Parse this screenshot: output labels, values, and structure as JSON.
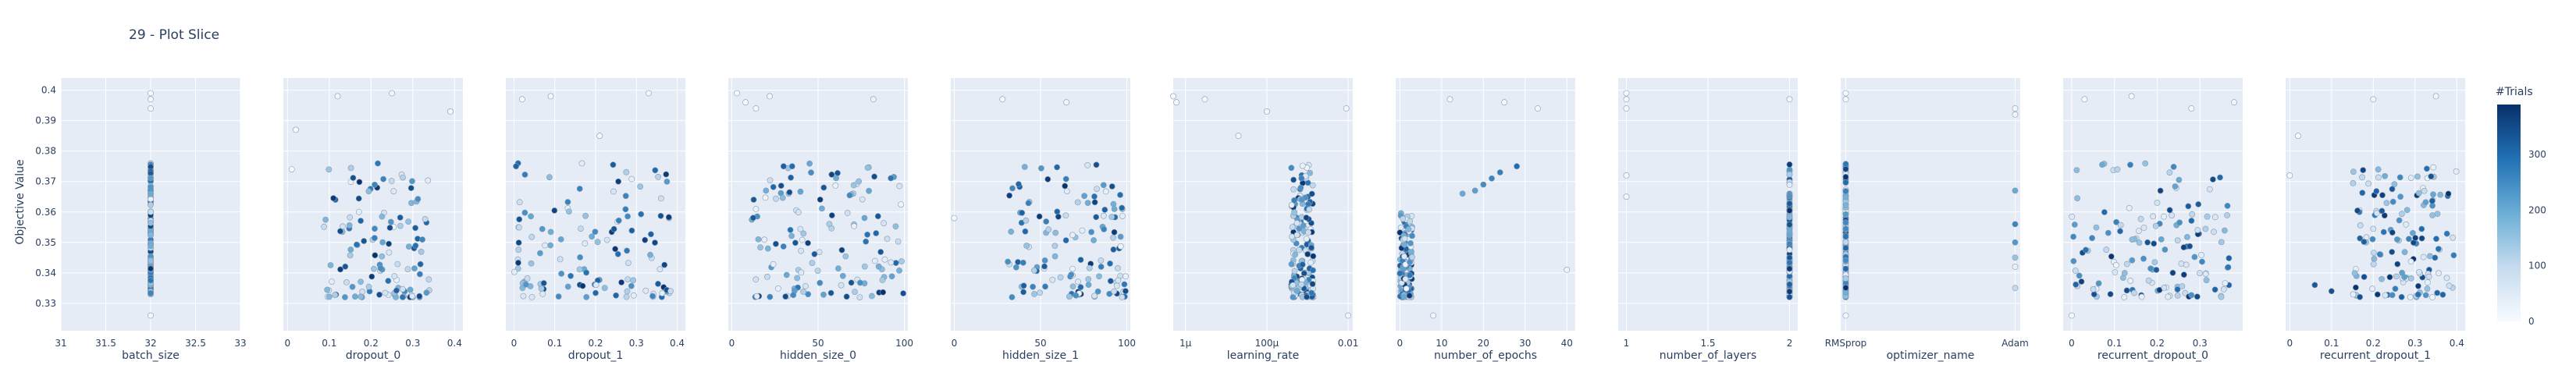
{
  "chart_data": {
    "type": "scatter",
    "title": "29 - Plot Slice",
    "ylabel": "Objective Value",
    "ylim": [
      0.321,
      0.404
    ],
    "yticks": [
      0.33,
      0.34,
      0.35,
      0.36,
      0.37,
      0.38,
      0.39,
      0.4
    ],
    "grid": true,
    "colorbar": {
      "title": "#Trials",
      "range": [
        0,
        390
      ],
      "ticks": [
        0,
        100,
        200,
        300
      ],
      "colorscale": [
        "#f7fbff",
        "#c6dbef",
        "#6baed6",
        "#2171b5",
        "#08306b"
      ]
    },
    "panels": [
      {
        "xlabel": "batch_size",
        "scale": "linear",
        "xlim": [
          31,
          33
        ],
        "xticks": [
          31,
          31.5,
          32,
          32.5,
          33
        ],
        "ticklabels": [
          "31",
          "31.5",
          "32",
          "32.5",
          "33"
        ],
        "seed": 1,
        "points": [
          [
            32,
            0.399,
            3
          ],
          [
            32,
            0.397,
            6
          ],
          [
            32,
            0.394,
            9
          ],
          [
            32,
            0.326,
            12
          ]
        ],
        "band": {
          "x": [
            32,
            32
          ],
          "y": [
            0.333,
            0.376
          ],
          "n": 140
        }
      },
      {
        "xlabel": "dropout_0",
        "scale": "linear",
        "xlim": [
          -0.01,
          0.42
        ],
        "xticks": [
          0,
          0.1,
          0.2,
          0.3,
          0.4
        ],
        "ticklabels": [
          "0",
          "0.1",
          "0.2",
          "0.3",
          "0.4"
        ],
        "seed": 2,
        "points": [
          [
            0.02,
            0.387,
            4
          ],
          [
            0.12,
            0.398,
            8
          ],
          [
            0.25,
            0.399,
            15
          ],
          [
            0.39,
            0.393,
            12
          ],
          [
            0.01,
            0.374,
            6
          ]
        ],
        "band": {
          "x": [
            0.08,
            0.34
          ],
          "y": [
            0.332,
            0.376
          ],
          "n": 120
        }
      },
      {
        "xlabel": "dropout_1",
        "scale": "linear",
        "xlim": [
          -0.02,
          0.42
        ],
        "xticks": [
          0,
          0.1,
          0.2,
          0.3,
          0.4
        ],
        "ticklabels": [
          "0",
          "0.1",
          "0.2",
          "0.3",
          "0.4"
        ],
        "seed": 3,
        "points": [
          [
            0.02,
            0.397,
            3
          ],
          [
            0.09,
            0.398,
            7
          ],
          [
            0.21,
            0.385,
            10
          ],
          [
            0.33,
            0.399,
            14
          ],
          [
            0.01,
            0.376,
            300
          ],
          [
            0.005,
            0.375,
            310
          ]
        ],
        "band": {
          "x": [
            0.0,
            0.4
          ],
          "y": [
            0.332,
            0.376
          ],
          "n": 120
        }
      },
      {
        "xlabel": "hidden_size_0",
        "scale": "linear",
        "xlim": [
          -2,
          102
        ],
        "xticks": [
          0,
          50,
          100
        ],
        "ticklabels": [
          "0",
          "50",
          "100"
        ],
        "seed": 4,
        "points": [
          [
            3,
            0.399,
            4
          ],
          [
            8,
            0.396,
            7
          ],
          [
            14,
            0.394,
            10
          ],
          [
            22,
            0.398,
            13
          ],
          [
            82,
            0.397,
            25
          ],
          [
            30,
            0.375,
            320
          ],
          [
            35,
            0.375,
            300
          ],
          [
            14,
            0.361,
            30
          ]
        ],
        "band": {
          "x": [
            10,
            100
          ],
          "y": [
            0.332,
            0.376
          ],
          "n": 130
        }
      },
      {
        "xlabel": "hidden_size_1",
        "scale": "linear",
        "xlim": [
          -2,
          102
        ],
        "xticks": [
          0,
          50,
          100
        ],
        "ticklabels": [
          "0",
          "50",
          "100"
        ],
        "seed": 5,
        "points": [
          [
            28,
            0.397,
            6
          ],
          [
            65,
            0.396,
            12
          ],
          [
            0,
            0.358,
            3
          ]
        ],
        "band": {
          "x": [
            30,
            100
          ],
          "y": [
            0.332,
            0.376
          ],
          "n": 130
        }
      },
      {
        "xlabel": "learning_rate",
        "scale": "log",
        "xlim": [
          5e-07,
          0.013
        ],
        "xticks": [
          1e-06,
          0.0001,
          0.01
        ],
        "ticklabels": [
          "1μ",
          "100μ",
          "0.01"
        ],
        "seed": 6,
        "points": [
          [
            5e-07,
            0.398,
            2
          ],
          [
            6e-07,
            0.396,
            4
          ],
          [
            3e-06,
            0.397,
            6
          ],
          [
            2e-05,
            0.385,
            8
          ],
          [
            0.0001,
            0.393,
            10
          ],
          [
            0.009,
            0.394,
            12
          ],
          [
            0.01,
            0.326,
            14
          ]
        ],
        "band": {
          "x": [
            0.0004,
            0.0014
          ],
          "y": [
            0.332,
            0.376
          ],
          "n": 150
        }
      },
      {
        "xlabel": "number_of_epochs",
        "scale": "linear",
        "xlim": [
          -1,
          42
        ],
        "xticks": [
          0,
          10,
          20,
          30,
          40
        ],
        "ticklabels": [
          "0",
          "10",
          "20",
          "30",
          "40"
        ],
        "seed": 7,
        "points": [
          [
            12,
            0.397,
            6
          ],
          [
            25,
            0.396,
            9
          ],
          [
            33,
            0.394,
            12
          ],
          [
            40,
            0.341,
            15
          ],
          [
            8,
            0.326,
            18
          ],
          [
            15,
            0.366,
            200
          ],
          [
            20,
            0.369,
            250
          ],
          [
            24,
            0.373,
            270
          ],
          [
            28,
            0.375,
            300
          ],
          [
            18,
            0.367,
            220
          ],
          [
            22,
            0.371,
            260
          ]
        ],
        "band": {
          "x": [
            0,
            3
          ],
          "y": [
            0.332,
            0.36
          ],
          "n": 150
        }
      },
      {
        "xlabel": "number_of_layers",
        "scale": "linear",
        "xlim": [
          0.95,
          2.05
        ],
        "xticks": [
          1,
          1.5,
          2
        ],
        "ticklabels": [
          "1",
          "1.5",
          "2"
        ],
        "seed": 8,
        "points": [
          [
            1,
            0.399,
            2
          ],
          [
            1,
            0.397,
            4
          ],
          [
            1,
            0.394,
            6
          ],
          [
            1,
            0.372,
            8
          ],
          [
            1,
            0.365,
            10
          ],
          [
            2,
            0.397,
            12
          ]
        ],
        "band": {
          "x": [
            2,
            2
          ],
          "y": [
            0.332,
            0.376
          ],
          "n": 150
        }
      },
      {
        "xlabel": "optimizer_name",
        "scale": "category",
        "categories": [
          "RMSprop",
          "Adam"
        ],
        "xlim": [
          -0.03,
          1.03
        ],
        "xticks": [
          0,
          1
        ],
        "ticklabels": [
          "RMSprop",
          "Adam"
        ],
        "seed": 9,
        "points": [
          [
            0,
            0.399,
            3
          ],
          [
            0,
            0.397,
            6
          ],
          [
            0,
            0.326,
            9
          ],
          [
            1,
            0.394,
            12
          ],
          [
            1,
            0.392,
            15
          ],
          [
            1,
            0.367,
            200
          ],
          [
            1,
            0.356,
            260
          ],
          [
            1,
            0.35,
            230
          ],
          [
            1,
            0.345,
            150
          ],
          [
            1,
            0.335,
            100
          ],
          [
            1,
            0.342,
            30
          ]
        ],
        "band": {
          "x": [
            0,
            0
          ],
          "y": [
            0.332,
            0.376
          ],
          "n": 150
        }
      },
      {
        "xlabel": "recurrent_dropout_0",
        "scale": "linear",
        "xlim": [
          -0.02,
          0.4
        ],
        "xticks": [
          0,
          0.1,
          0.2,
          0.3
        ],
        "ticklabels": [
          "0",
          "0.1",
          "0.2",
          "0.3"
        ],
        "seed": 10,
        "points": [
          [
            0.03,
            0.397,
            4
          ],
          [
            0.14,
            0.398,
            8
          ],
          [
            0.28,
            0.394,
            12
          ],
          [
            0.38,
            0.396,
            16
          ],
          [
            0.0,
            0.326,
            6
          ]
        ],
        "band": {
          "x": [
            0.0,
            0.37
          ],
          "y": [
            0.332,
            0.376
          ],
          "n": 140
        }
      },
      {
        "xlabel": "recurrent_dropout_1",
        "scale": "linear",
        "xlim": [
          -0.01,
          0.42
        ],
        "xticks": [
          0,
          0.1,
          0.2,
          0.3,
          0.4
        ],
        "ticklabels": [
          "0",
          "0.1",
          "0.2",
          "0.3",
          "0.4"
        ],
        "seed": 11,
        "points": [
          [
            0.0,
            0.372,
            3
          ],
          [
            0.02,
            0.385,
            5
          ],
          [
            0.2,
            0.397,
            10
          ],
          [
            0.35,
            0.398,
            14
          ],
          [
            0.06,
            0.336,
            330
          ],
          [
            0.1,
            0.334,
            340
          ]
        ],
        "band": {
          "x": [
            0.15,
            0.4
          ],
          "y": [
            0.332,
            0.376
          ],
          "n": 140
        }
      }
    ]
  }
}
